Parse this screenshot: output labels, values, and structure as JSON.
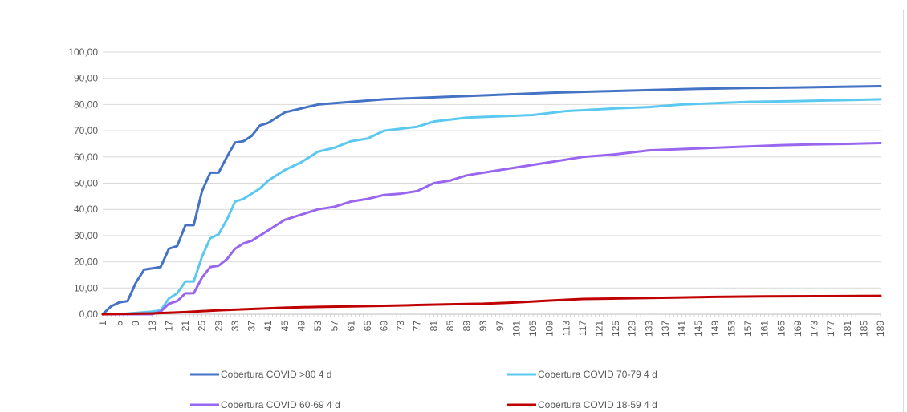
{
  "chart_data": {
    "type": "line",
    "title": "",
    "xlabel": "",
    "ylabel": "",
    "x_range": [
      1,
      189
    ],
    "x_tick_step": 4,
    "ylim": [
      0,
      100
    ],
    "y_ticks": [
      "0,00",
      "10,00",
      "20,00",
      "30,00",
      "40,00",
      "50,00",
      "60,00",
      "70,00",
      "80,00",
      "90,00",
      "100,00"
    ],
    "grid": "horizontal",
    "legend_position": "bottom",
    "series": [
      {
        "name": "Cobertura COVID >80 4 d",
        "color": "#4472C4",
        "points": [
          [
            1,
            0
          ],
          [
            3,
            3
          ],
          [
            5,
            4.5
          ],
          [
            7,
            5
          ],
          [
            9,
            12
          ],
          [
            11,
            17
          ],
          [
            13,
            17.5
          ],
          [
            15,
            18
          ],
          [
            17,
            25
          ],
          [
            19,
            26
          ],
          [
            21,
            34
          ],
          [
            23,
            34
          ],
          [
            25,
            47
          ],
          [
            27,
            54
          ],
          [
            29,
            54
          ],
          [
            31,
            60
          ],
          [
            33,
            65.5
          ],
          [
            35,
            66
          ],
          [
            37,
            68
          ],
          [
            39,
            72
          ],
          [
            41,
            73
          ],
          [
            45,
            77
          ],
          [
            49,
            78.5
          ],
          [
            53,
            80
          ],
          [
            57,
            80.5
          ],
          [
            61,
            81
          ],
          [
            65,
            81.5
          ],
          [
            69,
            82
          ],
          [
            77,
            82.5
          ],
          [
            85,
            83
          ],
          [
            93,
            83.5
          ],
          [
            101,
            84
          ],
          [
            109,
            84.5
          ],
          [
            121,
            85
          ],
          [
            133,
            85.5
          ],
          [
            145,
            86
          ],
          [
            157,
            86.3
          ],
          [
            169,
            86.5
          ],
          [
            181,
            86.8
          ],
          [
            189,
            87
          ]
        ]
      },
      {
        "name": "Cobertura COVID 70-79 4 d",
        "color": "#5BC8F0",
        "points": [
          [
            1,
            0
          ],
          [
            5,
            0
          ],
          [
            9,
            0.5
          ],
          [
            13,
            1
          ],
          [
            15,
            1.5
          ],
          [
            17,
            6
          ],
          [
            19,
            8
          ],
          [
            21,
            12.5
          ],
          [
            23,
            12.5
          ],
          [
            25,
            22
          ],
          [
            27,
            29
          ],
          [
            29,
            30.5
          ],
          [
            31,
            36
          ],
          [
            33,
            43
          ],
          [
            35,
            44
          ],
          [
            37,
            46
          ],
          [
            39,
            48
          ],
          [
            41,
            51
          ],
          [
            45,
            55
          ],
          [
            49,
            58
          ],
          [
            53,
            62
          ],
          [
            57,
            63.5
          ],
          [
            61,
            66
          ],
          [
            65,
            67
          ],
          [
            69,
            70
          ],
          [
            77,
            71.5
          ],
          [
            81,
            73.5
          ],
          [
            89,
            75
          ],
          [
            97,
            75.5
          ],
          [
            105,
            76
          ],
          [
            113,
            77.5
          ],
          [
            125,
            78.5
          ],
          [
            133,
            79
          ],
          [
            141,
            80
          ],
          [
            149,
            80.5
          ],
          [
            157,
            81
          ],
          [
            169,
            81.3
          ],
          [
            181,
            81.7
          ],
          [
            189,
            82
          ]
        ]
      },
      {
        "name": "Cobertura COVID 60-69 4 d",
        "color": "#9966F0",
        "points": [
          [
            1,
            0
          ],
          [
            13,
            0
          ],
          [
            15,
            1
          ],
          [
            17,
            4
          ],
          [
            19,
            5
          ],
          [
            21,
            8
          ],
          [
            23,
            8
          ],
          [
            25,
            14
          ],
          [
            27,
            18
          ],
          [
            29,
            18.5
          ],
          [
            31,
            21
          ],
          [
            33,
            25
          ],
          [
            35,
            27
          ],
          [
            37,
            28
          ],
          [
            39,
            30
          ],
          [
            41,
            32
          ],
          [
            45,
            36
          ],
          [
            49,
            38
          ],
          [
            53,
            40
          ],
          [
            57,
            41
          ],
          [
            61,
            43
          ],
          [
            65,
            44
          ],
          [
            69,
            45.5
          ],
          [
            73,
            46
          ],
          [
            77,
            47
          ],
          [
            81,
            50
          ],
          [
            85,
            51
          ],
          [
            89,
            53
          ],
          [
            93,
            54
          ],
          [
            97,
            55
          ],
          [
            101,
            56
          ],
          [
            109,
            58
          ],
          [
            117,
            60
          ],
          [
            125,
            61
          ],
          [
            133,
            62.5
          ],
          [
            141,
            63
          ],
          [
            149,
            63.5
          ],
          [
            157,
            64
          ],
          [
            165,
            64.5
          ],
          [
            173,
            64.8
          ],
          [
            181,
            65
          ],
          [
            189,
            65.3
          ]
        ]
      },
      {
        "name": "Cobertura COVID 18-59 4 d",
        "color": "#C00000",
        "points": [
          [
            1,
            0
          ],
          [
            13,
            0.3
          ],
          [
            21,
            0.8
          ],
          [
            29,
            1.5
          ],
          [
            37,
            2
          ],
          [
            45,
            2.5
          ],
          [
            53,
            2.8
          ],
          [
            61,
            3
          ],
          [
            69,
            3.2
          ],
          [
            77,
            3.5
          ],
          [
            85,
            3.8
          ],
          [
            93,
            4
          ],
          [
            101,
            4.5
          ],
          [
            109,
            5.2
          ],
          [
            117,
            5.8
          ],
          [
            125,
            6
          ],
          [
            133,
            6.2
          ],
          [
            141,
            6.4
          ],
          [
            149,
            6.6
          ],
          [
            161,
            6.8
          ],
          [
            175,
            6.9
          ],
          [
            189,
            7
          ]
        ]
      }
    ]
  }
}
